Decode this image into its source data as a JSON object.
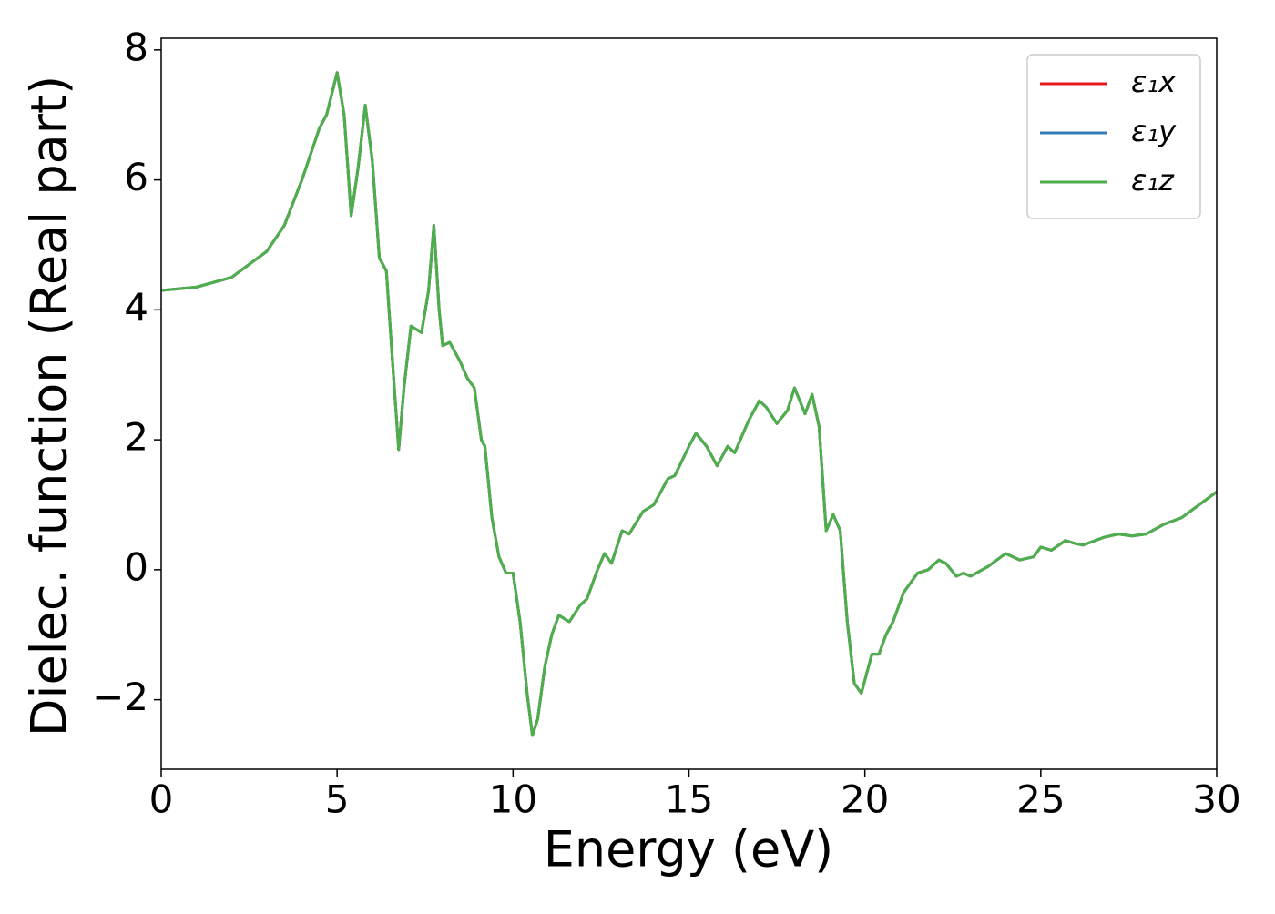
{
  "chart_data": {
    "type": "line",
    "x_label": "Energy (eV)",
    "y_label": "Dielec. function (Real part)",
    "x": [
      0,
      1,
      2,
      3,
      3.5,
      4,
      4.5,
      4.7,
      5.0,
      5.2,
      5.4,
      5.6,
      5.8,
      6.0,
      6.2,
      6.4,
      6.6,
      6.75,
      6.9,
      7.1,
      7.4,
      7.6,
      7.75,
      7.9,
      8.0,
      8.2,
      8.5,
      8.7,
      8.9,
      9.1,
      9.2,
      9.4,
      9.6,
      9.8,
      10.0,
      10.2,
      10.4,
      10.55,
      10.7,
      10.9,
      11.1,
      11.3,
      11.6,
      11.9,
      12.1,
      12.4,
      12.6,
      12.8,
      13.1,
      13.3,
      13.7,
      14.0,
      14.4,
      14.6,
      15.0,
      15.2,
      15.5,
      15.8,
      16.1,
      16.3,
      16.7,
      17.0,
      17.2,
      17.5,
      17.8,
      18.0,
      18.3,
      18.5,
      18.7,
      18.9,
      19.1,
      19.3,
      19.5,
      19.7,
      19.9,
      20.2,
      20.4,
      20.6,
      20.8,
      21.1,
      21.5,
      21.8,
      22.1,
      22.3,
      22.6,
      22.8,
      23.0,
      23.5,
      24.0,
      24.4,
      24.8,
      25.0,
      25.3,
      25.7,
      26.0,
      26.2,
      26.8,
      27.2,
      27.6,
      28.0,
      28.5,
      29.0,
      29.5,
      30.0
    ],
    "series": [
      {
        "name": "ε₁x",
        "color": "#e41a1c",
        "values": [
          4.3,
          4.35,
          4.5,
          4.9,
          5.3,
          6.0,
          6.8,
          7.0,
          7.65,
          7.0,
          5.45,
          6.2,
          7.15,
          6.3,
          4.8,
          4.6,
          3.0,
          1.85,
          2.8,
          3.75,
          3.65,
          4.3,
          5.3,
          4.0,
          3.45,
          3.5,
          3.2,
          2.95,
          2.8,
          2.0,
          1.9,
          0.8,
          0.2,
          -0.05,
          -0.05,
          -0.8,
          -1.9,
          -2.55,
          -2.3,
          -1.5,
          -1.0,
          -0.7,
          -0.8,
          -0.55,
          -0.45,
          0.0,
          0.25,
          0.1,
          0.6,
          0.55,
          0.9,
          1.0,
          1.4,
          1.45,
          1.9,
          2.1,
          1.9,
          1.6,
          1.9,
          1.8,
          2.3,
          2.6,
          2.5,
          2.25,
          2.45,
          2.8,
          2.4,
          2.7,
          2.2,
          0.6,
          0.85,
          0.6,
          -0.8,
          -1.75,
          -1.9,
          -1.3,
          -1.3,
          -1.0,
          -0.8,
          -0.35,
          -0.05,
          0.0,
          0.15,
          0.1,
          -0.1,
          -0.05,
          -0.1,
          0.05,
          0.25,
          0.15,
          0.2,
          0.35,
          0.3,
          0.45,
          0.4,
          0.38,
          0.5,
          0.55,
          0.52,
          0.55,
          0.7,
          0.8,
          1.0,
          1.2
        ]
      },
      {
        "name": "ε₁y",
        "color": "#377eb8",
        "values": [
          4.3,
          4.35,
          4.5,
          4.9,
          5.3,
          6.0,
          6.8,
          7.0,
          7.65,
          7.0,
          5.45,
          6.2,
          7.15,
          6.3,
          4.8,
          4.6,
          3.0,
          1.85,
          2.8,
          3.75,
          3.65,
          4.3,
          5.3,
          4.0,
          3.45,
          3.5,
          3.2,
          2.95,
          2.8,
          2.0,
          1.9,
          0.8,
          0.2,
          -0.05,
          -0.05,
          -0.8,
          -1.9,
          -2.55,
          -2.3,
          -1.5,
          -1.0,
          -0.7,
          -0.8,
          -0.55,
          -0.45,
          0.0,
          0.25,
          0.1,
          0.6,
          0.55,
          0.9,
          1.0,
          1.4,
          1.45,
          1.9,
          2.1,
          1.9,
          1.6,
          1.9,
          1.8,
          2.3,
          2.6,
          2.5,
          2.25,
          2.45,
          2.8,
          2.4,
          2.7,
          2.2,
          0.6,
          0.85,
          0.6,
          -0.8,
          -1.75,
          -1.9,
          -1.3,
          -1.3,
          -1.0,
          -0.8,
          -0.35,
          -0.05,
          0.0,
          0.15,
          0.1,
          -0.1,
          -0.05,
          -0.1,
          0.05,
          0.25,
          0.15,
          0.2,
          0.35,
          0.3,
          0.45,
          0.4,
          0.38,
          0.5,
          0.55,
          0.52,
          0.55,
          0.7,
          0.8,
          1.0,
          1.2
        ]
      },
      {
        "name": "ε₁z",
        "color": "#4daf4a",
        "values": [
          4.3,
          4.35,
          4.5,
          4.9,
          5.3,
          6.0,
          6.8,
          7.0,
          7.65,
          7.0,
          5.45,
          6.2,
          7.15,
          6.3,
          4.8,
          4.6,
          3.0,
          1.85,
          2.8,
          3.75,
          3.65,
          4.3,
          5.3,
          4.0,
          3.45,
          3.5,
          3.2,
          2.95,
          2.8,
          2.0,
          1.9,
          0.8,
          0.2,
          -0.05,
          -0.05,
          -0.8,
          -1.9,
          -2.55,
          -2.3,
          -1.5,
          -1.0,
          -0.7,
          -0.8,
          -0.55,
          -0.45,
          0.0,
          0.25,
          0.1,
          0.6,
          0.55,
          0.9,
          1.0,
          1.4,
          1.45,
          1.9,
          2.1,
          1.9,
          1.6,
          1.9,
          1.8,
          2.3,
          2.6,
          2.5,
          2.25,
          2.45,
          2.8,
          2.4,
          2.7,
          2.2,
          0.6,
          0.85,
          0.6,
          -0.8,
          -1.75,
          -1.9,
          -1.3,
          -1.3,
          -1.0,
          -0.8,
          -0.35,
          -0.05,
          0.0,
          0.15,
          0.1,
          -0.1,
          -0.05,
          -0.1,
          0.05,
          0.25,
          0.15,
          0.2,
          0.35,
          0.3,
          0.45,
          0.4,
          0.38,
          0.5,
          0.55,
          0.52,
          0.55,
          0.7,
          0.8,
          1.0,
          1.2
        ]
      }
    ],
    "xlim": [
      0,
      30
    ],
    "xticks": [
      0,
      5,
      10,
      15,
      20,
      25,
      30
    ],
    "ylim": [
      -3.07,
      8.18
    ],
    "yticks": [
      {
        "value": -2,
        "label": "−2"
      },
      0,
      2,
      4,
      6,
      8
    ],
    "legend": "upper right",
    "grid": false
  }
}
